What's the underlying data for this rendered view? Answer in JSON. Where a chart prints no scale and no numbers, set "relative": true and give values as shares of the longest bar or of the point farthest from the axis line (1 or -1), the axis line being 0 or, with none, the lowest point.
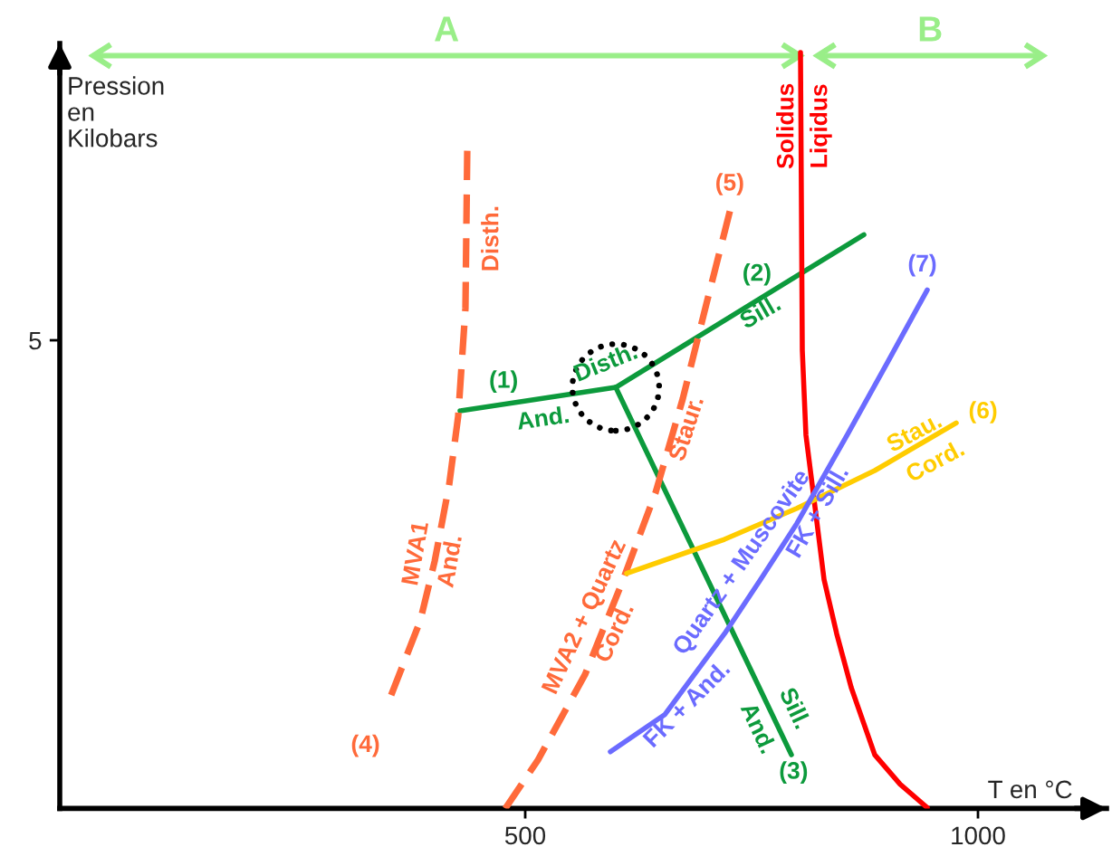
{
  "chart_data": {
    "type": "line",
    "relative": true,
    "xlabel": "T en °C",
    "ylabel": "Pression en Kilobars",
    "xlim": [
      -14,
      1142
    ],
    "xticks": [
      500,
      1000
    ],
    "series": [
      {
        "name": "(1)",
        "color": "#0c9a3c",
        "line_style": "solid",
        "x": [
          428,
          600
        ],
        "values": [
          0.526,
          0.557
        ]
      },
      {
        "name": "(2)",
        "color": "#0c9a3c",
        "line_style": "solid",
        "x": [
          600,
          874
        ],
        "values": [
          0.557,
          0.759
        ]
      },
      {
        "name": "(3)",
        "color": "#0c9a3c",
        "line_style": "solid",
        "x": [
          600,
          794
        ],
        "values": [
          0.557,
          0.071
        ]
      },
      {
        "color": "#ff0000",
        "line_style": "solid",
        "x": [
          804,
          806,
          810,
          820,
          830,
          844,
          860,
          886,
          914,
          944
        ],
        "values": [
          1,
          0.606,
          0.494,
          0.399,
          0.303,
          0.231,
          0.16,
          0.071,
          0.032,
          0.001
        ]
      },
      {
        "name": "(4)",
        "color": "#ff6a3a",
        "line_style": "dashed",
        "x": [
          436,
          434,
          426,
          416,
          400,
          384,
          352
        ],
        "values": [
          0.87,
          0.662,
          0.519,
          0.428,
          0.327,
          0.248,
          0.15
        ]
      },
      {
        "name": "(5)",
        "color": "#ff6a3a",
        "line_style": "dashed",
        "x": [
          478,
          514,
          566,
          606,
          644,
          674,
          700,
          726
        ],
        "values": [
          0,
          0.064,
          0.177,
          0.296,
          0.418,
          0.542,
          0.667,
          0.79
        ]
      },
      {
        "name": "(6)",
        "color": "#ffcc00",
        "line_style": "solid",
        "x": [
          612,
          720,
          800,
          886,
          976
        ],
        "values": [
          0.311,
          0.356,
          0.397,
          0.447,
          0.51
        ]
      },
      {
        "name": "(7)",
        "color": "#6b6bff",
        "line_style": "solid",
        "x": [
          594,
          654,
          720,
          760,
          800,
          856,
          900,
          944
        ],
        "values": [
          0.075,
          0.124,
          0.231,
          0.303,
          0.377,
          0.495,
          0.59,
          0.686
        ]
      },
      {
        "type": "scatter",
        "color": "#000000",
        "marker": "circle",
        "x": [
          600
        ],
        "values": [
          0.557
        ]
      }
    ],
    "annotations": [
      "And.",
      "Disth.",
      "Sill.",
      "Sill.",
      "And.",
      "Disth.",
      "MVA1",
      "And.",
      "Staur.",
      "MVA2 + Quartz",
      "Cord.",
      "Stau.",
      "Cord.",
      "Quartz + Muscovite",
      "FK + Sill.",
      "FK + And.",
      "Solidus",
      "Liqidus",
      "A",
      "B",
      "5"
    ]
  }
}
